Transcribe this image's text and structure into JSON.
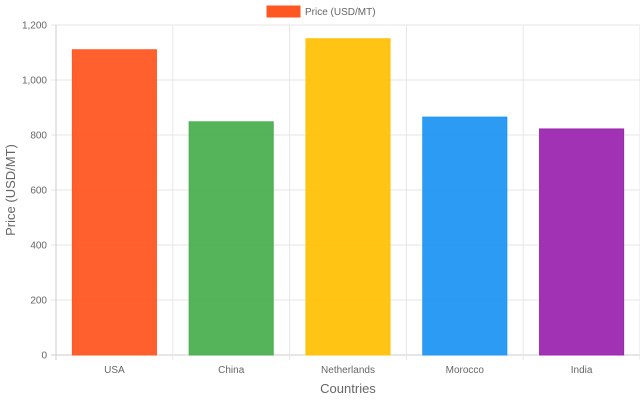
{
  "chart_data": {
    "type": "bar",
    "categories": [
      "USA",
      "China",
      "Netherlands",
      "Morocco",
      "India"
    ],
    "series": [
      {
        "name": "Price (USD/MT)",
        "values": [
          1110,
          848,
          1150,
          865,
          822
        ],
        "colors": [
          "#FF5722",
          "#4CAF50",
          "#FFC107",
          "#2196F3",
          "#9C27B0"
        ]
      }
    ],
    "legend_color": "#FF5722",
    "xlabel": "Countries",
    "ylabel": "Price (USD/MT)",
    "ylim": [
      0,
      1200
    ],
    "yticks": [
      "0",
      "200",
      "400",
      "600",
      "800",
      "1,000",
      "1,200"
    ],
    "ytick_values": [
      0,
      200,
      400,
      600,
      800,
      1000,
      1200
    ],
    "grid": true,
    "legend_position": "top-center"
  }
}
